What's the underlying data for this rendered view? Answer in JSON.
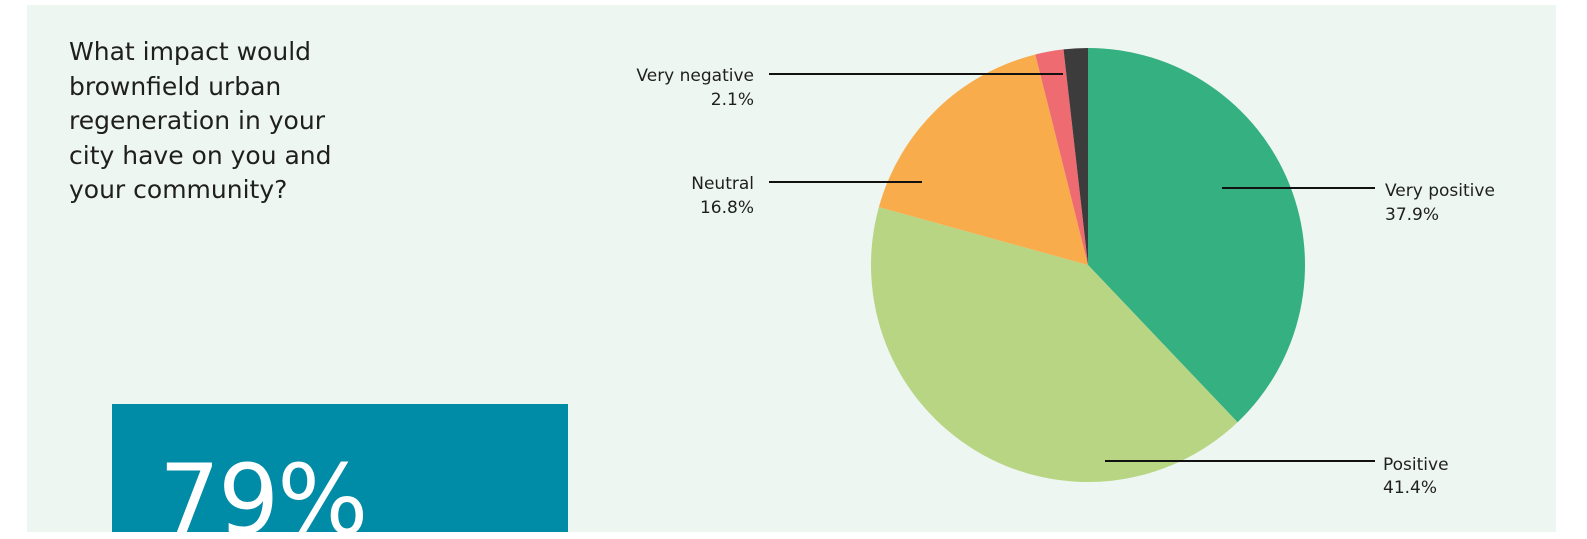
{
  "question": "What impact would brownfield urban regeneration in your city have on you and your community?",
  "highlight": {
    "value": "79%"
  },
  "chart_data": {
    "type": "pie",
    "slices": [
      {
        "label": "Very positive",
        "value": 37.9,
        "value_label": "37.9%",
        "color": "#35b081"
      },
      {
        "label": "Positive",
        "value": 41.4,
        "value_label": "41.4%",
        "color": "#b8d584"
      },
      {
        "label": "Neutral",
        "value": 16.8,
        "value_label": "16.8%",
        "color": "#f8ac4b"
      },
      {
        "label": "Very negative",
        "value": 2.1,
        "value_label": "2.1%",
        "color": "#ef6b72"
      },
      {
        "label": "",
        "value": 1.8,
        "value_label": "",
        "color": "#3c3c3c"
      }
    ]
  }
}
